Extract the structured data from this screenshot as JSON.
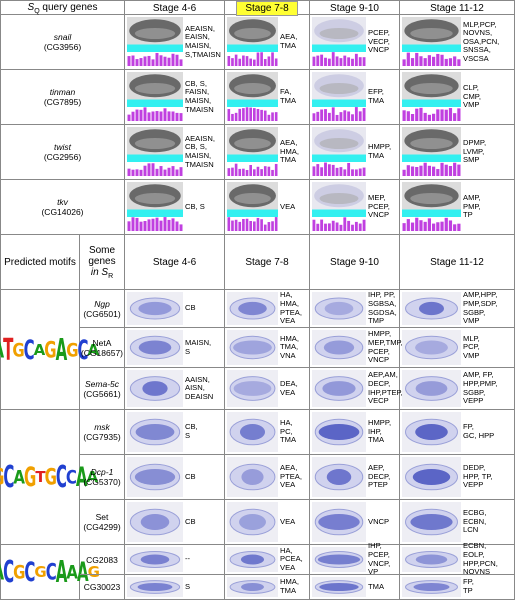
{
  "header": {
    "query_s": "S",
    "query_sub": "Q",
    "query_rest": "query genes",
    "stages": [
      "Stage 4-6",
      "Stage 7-8",
      "Stage 9-10",
      "Stage 11-12"
    ]
  },
  "query_genes": [
    {
      "name": "snail",
      "id": "(CG3956)",
      "stages": [
        [
          "AEAISN,",
          "EAISN,",
          "MAISN,",
          "S,TMAISN"
        ],
        [
          "AEA,",
          "TMA"
        ],
        [
          "PCEP,",
          "VECP,",
          "VNCP"
        ],
        [
          "MLP,PCP,",
          "NOVNS,",
          "OSA,PCN,",
          "SNSSA,",
          "VSCSA"
        ]
      ]
    },
    {
      "name": "tinman",
      "id": "(CG7895)",
      "stages": [
        [
          "CB, S,",
          "FAISN,",
          "MAISN,",
          "TMAISN"
        ],
        [
          "FA,",
          "TMA"
        ],
        [
          "EFP,",
          "TMA"
        ],
        [
          "CLP,",
          "CMP,",
          "VMP"
        ]
      ]
    },
    {
      "name": "twist",
      "id": "(CG2956)",
      "stages": [
        [
          "AEAISN,",
          "CB, S,",
          "MAISN,",
          "TMAISN"
        ],
        [
          "AEA,",
          "HMA,",
          "TMA"
        ],
        [
          "HMPP,",
          "TMA"
        ],
        [
          "DPMP,",
          "LVMP,",
          "SMP"
        ]
      ]
    },
    {
      "name": "tkv",
      "id": "(CG14026)",
      "stages": [
        [
          "CB, S"
        ],
        [
          "VEA"
        ],
        [
          "MEP,",
          "PCEP,",
          "VNCP"
        ],
        [
          "AMP,",
          "PMP,",
          "TP"
        ]
      ]
    }
  ],
  "predicted_header": {
    "motifs": "Predicted motifs",
    "genes": "Some genes",
    "in": "in",
    "s": "S",
    "sub": "R"
  },
  "motifs": [
    {
      "logo": "AATGCAGAGCA",
      "genes": [
        {
          "name": "Ngp",
          "id": "(CG6501)",
          "italic": true,
          "stages": [
            [
              "CB"
            ],
            [
              "HA,",
              "HMA,",
              "PTEA,",
              "VEA"
            ],
            [
              "IHP, PP,",
              "SGBSA,",
              "SGDSA,",
              "TMP"
            ],
            [
              "AMP,HPP,",
              "PMP,SDP,",
              "SGBP,",
              "VMP"
            ]
          ]
        },
        {
          "name": "NetA",
          "id": "(CG18657)",
          "italic": false,
          "stages": [
            [
              "MAISN,",
              "S"
            ],
            [
              "HMA,",
              "TMA,",
              "VNA"
            ],
            [
              "HMPP,",
              "MEP,TMP,",
              "PCEP,",
              "VNCP"
            ],
            [
              "MLP,",
              "PCP,",
              "VMP"
            ]
          ]
        },
        {
          "name": "Sema-5c",
          "id": "(CG5661)",
          "italic": true,
          "stages": [
            [
              "AAISN,",
              "AISN,",
              "DEAISN"
            ],
            [
              "DEA,",
              "VEA"
            ],
            [
              "AEP,AM,",
              "DECP,",
              "IHP,PTEP,",
              "VECP"
            ],
            [
              "AMP, FP,",
              "HPP,PMP,",
              "SGBP,",
              "VEPP"
            ]
          ]
        }
      ]
    },
    {
      "logo": "TGCAGTGCCAA",
      "genes": [
        {
          "name": "msk",
          "id": "(CG7935)",
          "italic": true,
          "stages": [
            [
              "CB,",
              "S"
            ],
            [
              "HA,",
              "PC,",
              "TMA"
            ],
            [
              "HMPP,",
              "IHP,",
              "TMA"
            ],
            [
              "FP,",
              "GC, HPP"
            ]
          ]
        },
        {
          "name": "Dcp-1",
          "id": "(CG5370)",
          "italic": true,
          "stages": [
            [
              "CB"
            ],
            [
              "AEA,",
              "PTEA,",
              "VEA"
            ],
            [
              "AEP,",
              "DECP,",
              "PTEP"
            ],
            [
              "DEDP,",
              "HPP, TP,",
              "VEPP"
            ]
          ]
        },
        {
          "name": "Set",
          "id": "(CG4299)",
          "italic": false,
          "stages": [
            [
              "CB"
            ],
            [
              "VEA"
            ],
            [
              "VNCP"
            ],
            [
              "ECBG,",
              "ECBN,",
              "LCN"
            ]
          ]
        }
      ]
    },
    {
      "logo": "GACGCGCAAAG",
      "genes": [
        {
          "name": "CG2083",
          "italic": false,
          "stages": [
            [
              "--"
            ],
            [
              "HA,",
              "PCEA,",
              "VEA"
            ],
            [
              "IHP,",
              "PCEP,",
              "VNCP,",
              "VP"
            ],
            [
              "ECBN,",
              "EOLP,",
              "HPP,PCN,",
              "NOVNS"
            ]
          ]
        },
        {
          "name": "CG30023",
          "italic": false,
          "stages": [
            [
              "S"
            ],
            [
              "HMA,",
              "TMA"
            ],
            [
              "TMA"
            ],
            [
              "FP,",
              "TP"
            ]
          ]
        }
      ]
    }
  ]
}
